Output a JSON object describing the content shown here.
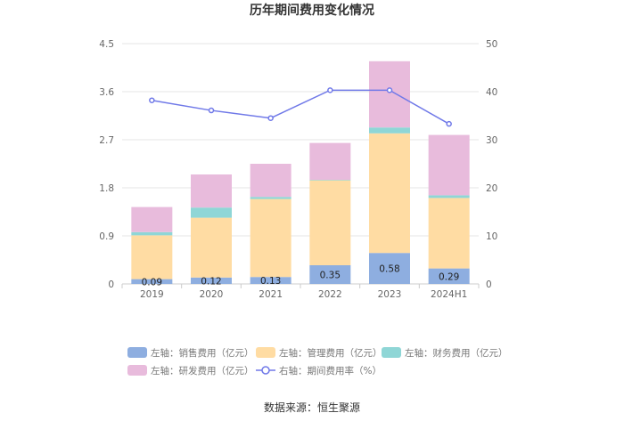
{
  "chart_data": {
    "type": "bar",
    "stacked": true,
    "title": "历年期间费用变化情况",
    "categories": [
      "2019",
      "2020",
      "2021",
      "2022",
      "2023",
      "2024H1"
    ],
    "left_axis": {
      "min": 0,
      "max": 4.5,
      "ticks": [
        "0",
        "0.9",
        "1.8",
        "2.7",
        "3.6",
        "4.5"
      ]
    },
    "right_axis": {
      "min": 0,
      "max": 50,
      "ticks": [
        "0",
        "10",
        "20",
        "30",
        "40",
        "50"
      ]
    },
    "series": [
      {
        "name": "左轴：销售费用（亿元）",
        "axis": "left",
        "color": "#8eaee0",
        "values": [
          0.09,
          0.12,
          0.13,
          0.35,
          0.58,
          0.29
        ],
        "labels": [
          "0.09",
          "0.12",
          "0.13",
          "0.35",
          "0.58",
          "0.29"
        ]
      },
      {
        "name": "左轴：管理费用（亿元）",
        "axis": "left",
        "color": "#ffdca3",
        "values": [
          0.82,
          1.12,
          1.46,
          1.59,
          2.24,
          1.32
        ]
      },
      {
        "name": "左轴：财务费用（亿元）",
        "axis": "left",
        "color": "#8fd6d6",
        "values": [
          0.06,
          0.19,
          0.04,
          0.01,
          0.11,
          0.05
        ]
      },
      {
        "name": "左轴：研发费用（亿元）",
        "axis": "left",
        "color": "#e8bbdc",
        "values": [
          0.47,
          0.62,
          0.62,
          0.69,
          1.24,
          1.13
        ]
      },
      {
        "name": "右轴：期间费用率（%）",
        "axis": "right",
        "type": "line",
        "color": "#7079e8",
        "values": [
          38.2,
          36.1,
          34.5,
          40.3,
          40.3,
          33.3
        ]
      }
    ],
    "legend_position": "bottom",
    "grid": true
  },
  "source_text": "数据来源：恒生聚源"
}
